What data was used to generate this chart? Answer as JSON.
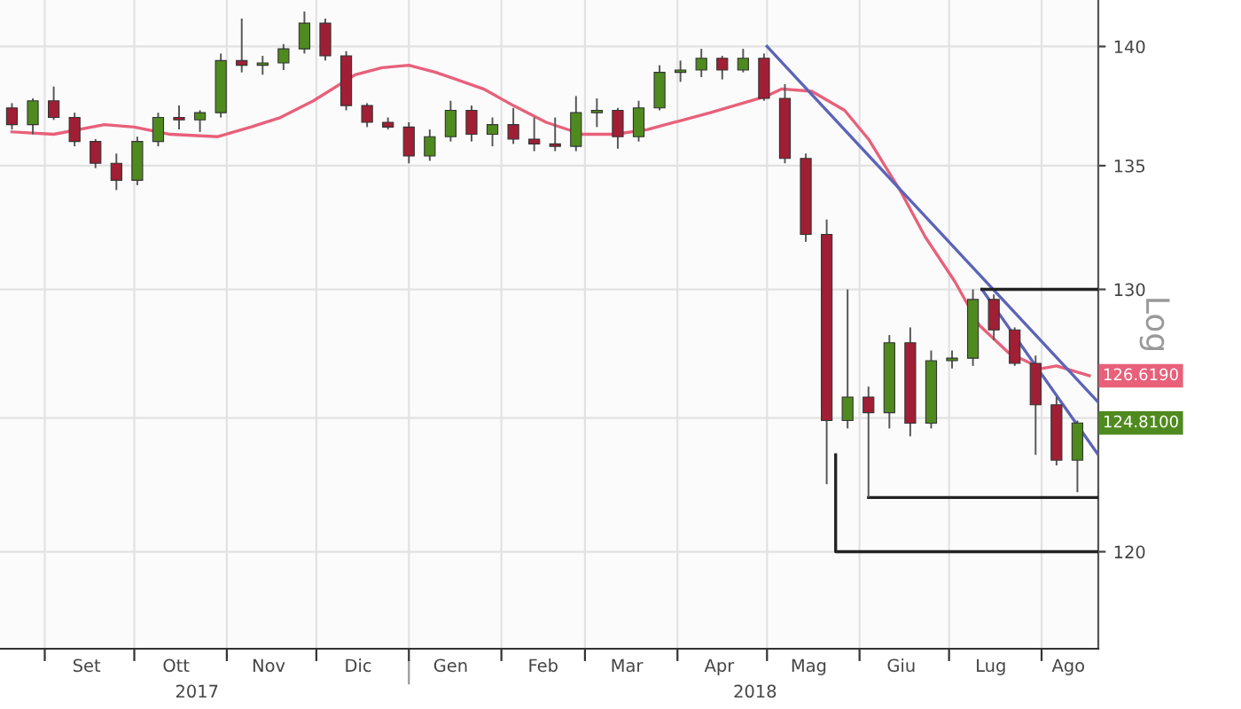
{
  "chart_data": {
    "type": "candlestick",
    "ylabel": "Log",
    "log": "y",
    "grid": true,
    "legend": false,
    "x": [
      "2017-08-21",
      "2017-08-28",
      "2017-09-04",
      "2017-09-11",
      "2017-09-18",
      "2017-09-25",
      "2017-10-02",
      "2017-10-09",
      "2017-10-16",
      "2017-10-23",
      "2017-10-30",
      "2017-11-06",
      "2017-11-13",
      "2017-11-20",
      "2017-11-27",
      "2017-12-04",
      "2017-12-11",
      "2017-12-18",
      "2017-12-25",
      "2018-01-01",
      "2018-01-08",
      "2018-01-15",
      "2018-01-22",
      "2018-01-29",
      "2018-02-05",
      "2018-02-12",
      "2018-02-19",
      "2018-02-26",
      "2018-03-05",
      "2018-03-12",
      "2018-03-19",
      "2018-03-26",
      "2018-04-02",
      "2018-04-09",
      "2018-04-16",
      "2018-04-23",
      "2018-04-30",
      "2018-05-07",
      "2018-05-14",
      "2018-05-21",
      "2018-05-28",
      "2018-06-04",
      "2018-06-11",
      "2018-06-18",
      "2018-06-25",
      "2018-07-02",
      "2018-07-09",
      "2018-07-16",
      "2018-07-23",
      "2018-07-30",
      "2018-08-06",
      "2018-08-13"
    ],
    "ohlc": [
      [
        137.4,
        137.6,
        136.5,
        136.7
      ],
      [
        136.7,
        137.8,
        136.3,
        137.7
      ],
      [
        137.7,
        138.3,
        136.9,
        137.0
      ],
      [
        137.0,
        137.2,
        135.8,
        136.0
      ],
      [
        136.0,
        136.1,
        134.9,
        135.1
      ],
      [
        135.1,
        135.5,
        134.0,
        134.4
      ],
      [
        134.4,
        136.2,
        134.2,
        136.0
      ],
      [
        136.0,
        137.2,
        135.8,
        137.0
      ],
      [
        137.0,
        137.5,
        136.5,
        136.9
      ],
      [
        136.9,
        137.3,
        136.4,
        137.2
      ],
      [
        137.2,
        139.7,
        137.0,
        139.4
      ],
      [
        139.4,
        141.2,
        138.9,
        139.2
      ],
      [
        139.2,
        139.6,
        138.8,
        139.3
      ],
      [
        139.3,
        140.1,
        139.0,
        139.9
      ],
      [
        139.9,
        141.5,
        139.7,
        141.0
      ],
      [
        141.0,
        141.2,
        139.4,
        139.6
      ],
      [
        139.6,
        139.8,
        137.3,
        137.5
      ],
      [
        137.5,
        137.6,
        136.6,
        136.8
      ],
      [
        136.8,
        137.0,
        136.5,
        136.6
      ],
      [
        136.6,
        136.8,
        135.1,
        135.4
      ],
      [
        135.4,
        136.5,
        135.2,
        136.2
      ],
      [
        136.2,
        137.7,
        136.0,
        137.3
      ],
      [
        137.3,
        137.5,
        136.0,
        136.3
      ],
      [
        136.3,
        137.0,
        135.8,
        136.7
      ],
      [
        136.7,
        137.4,
        135.9,
        136.1
      ],
      [
        136.1,
        137.0,
        135.6,
        135.9
      ],
      [
        135.9,
        137.0,
        135.6,
        135.8
      ],
      [
        135.8,
        137.9,
        135.6,
        137.2
      ],
      [
        137.2,
        137.8,
        136.6,
        137.3
      ],
      [
        137.3,
        137.4,
        135.7,
        136.2
      ],
      [
        136.2,
        137.7,
        136.0,
        137.4
      ],
      [
        137.4,
        139.2,
        137.3,
        138.9
      ],
      [
        138.9,
        139.4,
        138.5,
        139.0
      ],
      [
        139.0,
        139.9,
        138.7,
        139.5
      ],
      [
        139.5,
        139.6,
        138.6,
        139.0
      ],
      [
        139.0,
        139.9,
        138.9,
        139.5
      ],
      [
        139.5,
        139.7,
        137.7,
        137.8
      ],
      [
        137.8,
        138.4,
        135.1,
        135.3
      ],
      [
        135.3,
        135.5,
        131.9,
        132.2
      ],
      [
        132.2,
        132.8,
        122.5,
        124.9
      ],
      [
        124.9,
        130.0,
        124.6,
        125.8
      ],
      [
        125.8,
        126.2,
        122.0,
        125.2
      ],
      [
        125.2,
        128.2,
        124.6,
        127.9
      ],
      [
        127.9,
        128.5,
        124.3,
        124.8
      ],
      [
        124.8,
        127.6,
        124.6,
        127.2
      ],
      [
        127.2,
        127.6,
        126.9,
        127.3
      ],
      [
        127.3,
        130.0,
        127.0,
        129.6
      ],
      [
        129.6,
        129.8,
        128.0,
        128.4
      ],
      [
        128.4,
        128.5,
        127.0,
        127.1
      ],
      [
        127.1,
        127.4,
        123.6,
        125.5
      ],
      [
        125.5,
        125.8,
        123.2,
        123.4
      ],
      [
        123.4,
        124.9,
        122.2,
        124.81
      ]
    ],
    "colors": [
      "#a01f35",
      "#4f8a1f",
      "#a01f35",
      "#a01f35",
      "#a01f35",
      "#a01f35",
      "#4f8a1f",
      "#4f8a1f",
      "#a01f35",
      "#4f8a1f",
      "#4f8a1f",
      "#a01f35",
      "#4f8a1f",
      "#4f8a1f",
      "#4f8a1f",
      "#a01f35",
      "#a01f35",
      "#a01f35",
      "#a01f35",
      "#a01f35",
      "#4f8a1f",
      "#4f8a1f",
      "#a01f35",
      "#4f8a1f",
      "#a01f35",
      "#a01f35",
      "#a01f35",
      "#4f8a1f",
      "#4f8a1f",
      "#a01f35",
      "#4f8a1f",
      "#4f8a1f",
      "#4f8a1f",
      "#4f8a1f",
      "#a01f35",
      "#4f8a1f",
      "#a01f35",
      "#a01f35",
      "#a01f35",
      "#a01f35",
      "#4f8a1f",
      "#a01f35",
      "#4f8a1f",
      "#a01f35",
      "#4f8a1f",
      "#4f8a1f",
      "#4f8a1f",
      "#a01f35",
      "#a01f35",
      "#a01f35",
      "#a01f35",
      "#4f8a1f"
    ],
    "series": [
      {
        "type": "line",
        "color": "#e8607a",
        "x": [
          "2017-08-21",
          "2017-09-04",
          "2017-09-21",
          "2017-10-01",
          "2017-10-13",
          "2017-10-29",
          "2017-11-09",
          "2017-11-19",
          "2017-11-30",
          "2017-12-14",
          "2017-12-23",
          "2018-01-01",
          "2018-01-10",
          "2018-01-26",
          "2018-02-05",
          "2018-02-16",
          "2018-02-28",
          "2018-03-11",
          "2018-03-22",
          "2018-03-31",
          "2018-04-12",
          "2018-05-01",
          "2018-05-06",
          "2018-05-16",
          "2018-05-27",
          "2018-06-04",
          "2018-06-15",
          "2018-06-23",
          "2018-07-03",
          "2018-07-11",
          "2018-07-21",
          "2018-08-01",
          "2018-08-06",
          "2018-08-17"
        ],
        "values": [
          136.4,
          136.3,
          136.7,
          136.6,
          136.3,
          136.2,
          136.6,
          137.0,
          137.7,
          138.8,
          139.1,
          139.2,
          138.9,
          138.2,
          137.5,
          136.8,
          136.3,
          136.3,
          136.5,
          136.8,
          137.2,
          137.9,
          138.2,
          138.1,
          137.3,
          136.1,
          133.9,
          132.1,
          130.3,
          128.6,
          127.5,
          126.9,
          127.0,
          126.619
        ]
      },
      {
        "type": "line",
        "color": "#5b64b8",
        "x": [
          "2018-05-01",
          "2018-08-20"
        ],
        "values": [
          140,
          125.6
        ]
      },
      {
        "type": "line",
        "color": "#5b64b8",
        "x": [
          "2018-07-12",
          "2018-08-20"
        ],
        "values": [
          130,
          123.6
        ]
      },
      {
        "type": "line",
        "color": "#222222",
        "x": [
          "2018-07-12",
          "2018-08-20"
        ],
        "values": [
          130,
          130
        ]
      },
      {
        "type": "line",
        "color": "#222222",
        "x": [
          "2018-06-04",
          "2018-08-20"
        ],
        "values": [
          122,
          122
        ]
      },
      {
        "type": "line",
        "color": "#222222",
        "x": [
          "2018-05-24",
          "2018-05-24",
          "2018-08-20"
        ],
        "values": [
          123.6,
          120,
          120
        ]
      }
    ],
    "annotations": [
      {
        "text": "126.6190",
        "x": "2018-08-17",
        "y": 126.619
      },
      {
        "text": "124.8100",
        "x": "2018-08-13",
        "y": 124.81
      }
    ],
    "xlim": [
      "2017-08-17",
      "2018-08-20"
    ],
    "xticks": [
      {
        "value": "2017-09-01",
        "label": null
      },
      {
        "value": "2017-09-15",
        "label": "Set"
      },
      {
        "value": "2017-10-01",
        "label": null
      },
      {
        "value": "2017-10-15",
        "label": "Ott"
      },
      {
        "value": "2017-11-01",
        "label": null
      },
      {
        "value": "2017-11-15",
        "label": "Nov"
      },
      {
        "value": "2017-12-01",
        "label": null
      },
      {
        "value": "2017-12-15",
        "label": "Dic"
      },
      {
        "value": "2018-01-01",
        "label": null
      },
      {
        "value": "2018-01-15",
        "label": "Gen"
      },
      {
        "value": "2018-02-01",
        "label": null
      },
      {
        "value": "2018-02-15",
        "label": "Feb"
      },
      {
        "value": "2018-03-01",
        "label": null
      },
      {
        "value": "2018-03-15",
        "label": "Mar"
      },
      {
        "value": "2018-04-01",
        "label": null
      },
      {
        "value": "2018-04-15",
        "label": "Apr"
      },
      {
        "value": "2018-05-01",
        "label": null
      },
      {
        "value": "2018-05-15",
        "label": "Mag"
      },
      {
        "value": "2018-06-01",
        "label": null
      },
      {
        "value": "2018-06-15",
        "label": "Giu"
      },
      {
        "value": "2018-07-01",
        "label": null
      },
      {
        "value": "2018-07-15",
        "label": "Lug"
      },
      {
        "value": "2018-08-01",
        "label": null
      },
      {
        "value": "2018-08-10",
        "label": "Ago"
      }
    ],
    "x2lim": [
      "2017-08-17",
      "2018-08-20"
    ],
    "x2ticks": [
      {
        "value": "2017-10-22",
        "label": "2017"
      },
      {
        "value": "2018-01-01",
        "label": null
      },
      {
        "value": "2018-04-27",
        "label": "2018"
      }
    ],
    "ylim": [
      116.5,
      142
    ],
    "yticks": [
      120,
      {
        "value": 125,
        "label": null
      },
      130,
      135,
      140
    ]
  }
}
